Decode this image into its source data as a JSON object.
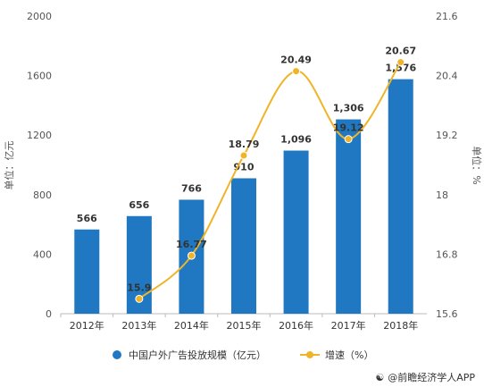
{
  "chart_data": {
    "type": "bar",
    "categories": [
      "2012年",
      "2013年",
      "2014年",
      "2015年",
      "2016年",
      "2017年",
      "2018年"
    ],
    "series": [
      {
        "name": "中国户外广告投放规模（亿元）",
        "type": "bar",
        "axis": "left",
        "values": [
          566,
          656,
          766,
          910,
          1096,
          1306,
          1576
        ],
        "labels": [
          "566",
          "656",
          "766",
          "910",
          "1,096",
          "1,306",
          "1,576"
        ],
        "color": "#1f78c1"
      },
      {
        "name": "增速（%）",
        "type": "line",
        "axis": "right",
        "values": [
          null,
          15.9,
          16.77,
          18.79,
          20.49,
          19.12,
          20.67
        ],
        "labels": [
          "",
          "15.9",
          "16.77",
          "18.79",
          "20.49",
          "19.12",
          "20.67"
        ],
        "color": "#f0b429"
      }
    ],
    "y_left": {
      "label": "单位：亿元",
      "min": 0,
      "max": 2000,
      "ticks": [
        "0",
        "400",
        "800",
        "1200",
        "1600",
        "2000"
      ]
    },
    "y_right": {
      "label": "单位：%",
      "min": 15.6,
      "max": 21.6,
      "ticks": [
        "15.6",
        "16.8",
        "18",
        "19.2",
        "20.4",
        "21.6"
      ]
    },
    "grid": false,
    "legend": "bottom"
  },
  "source": {
    "icon": "app-icon",
    "text": "@前瞻经济学人APP"
  }
}
